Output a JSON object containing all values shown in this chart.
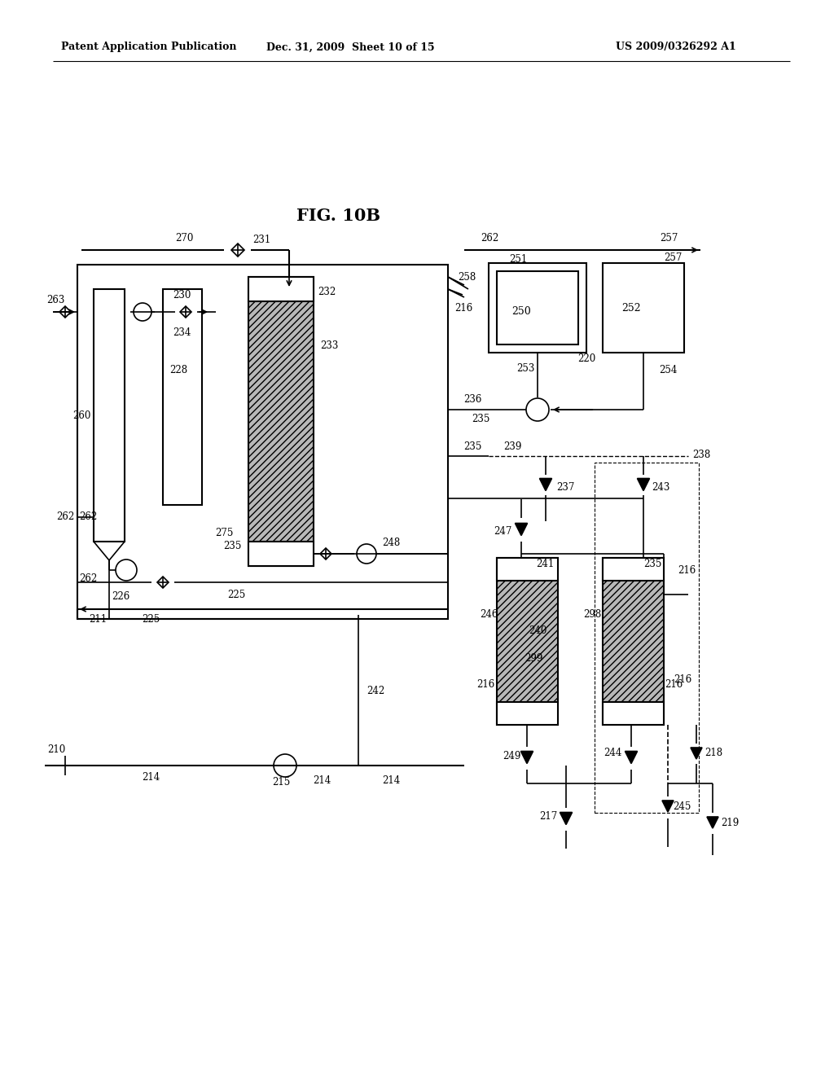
{
  "title": "FIG. 10B",
  "header_left": "Patent Application Publication",
  "header_center": "Dec. 31, 2009  Sheet 10 of 15",
  "header_right": "US 2009/0326292 A1",
  "bg_color": "#ffffff",
  "line_color": "#000000",
  "gray_fill": "#a0a0a0",
  "light_gray": "#c0c0c0"
}
